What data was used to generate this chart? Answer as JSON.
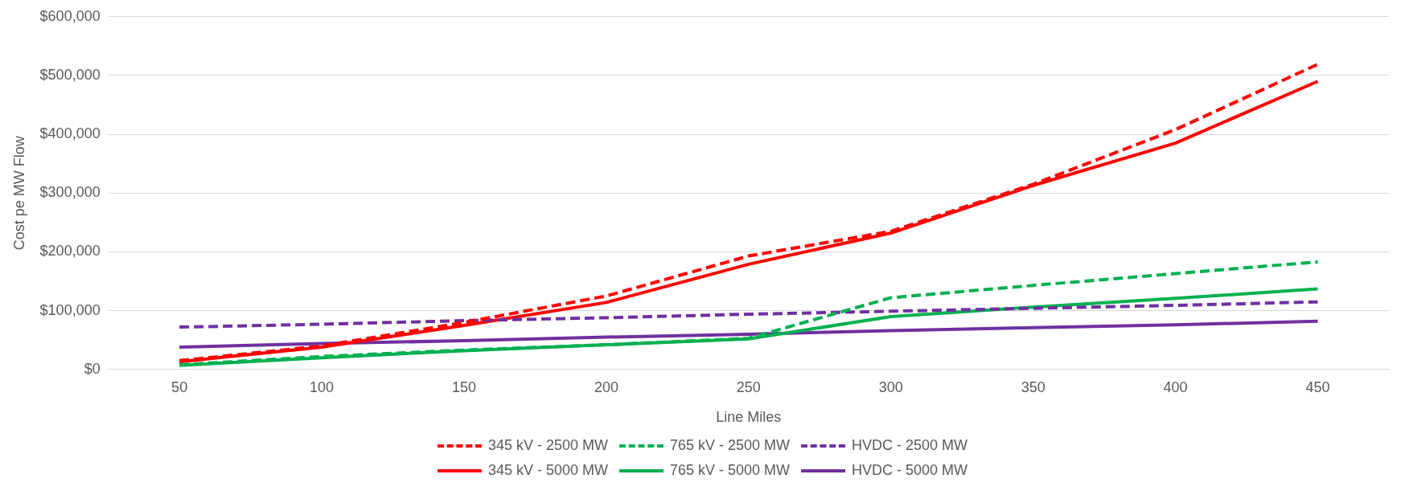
{
  "chart_data": {
    "type": "line",
    "xlabel": "Line Miles",
    "ylabel": "Cost pe MW Flow",
    "categories": [
      "50",
      "100",
      "150",
      "200",
      "250",
      "300",
      "350",
      "400",
      "450"
    ],
    "ylim": [
      0,
      600000
    ],
    "yticks": [
      {
        "value": 0,
        "label": "$0"
      },
      {
        "value": 100000,
        "label": "$100,000"
      },
      {
        "value": 200000,
        "label": "$200,000"
      },
      {
        "value": 300000,
        "label": "$300,000"
      },
      {
        "value": 400000,
        "label": "$400,000"
      },
      {
        "value": 500000,
        "label": "$500,000"
      },
      {
        "value": 600000,
        "label": "$600,000"
      }
    ],
    "grid": "y",
    "legend": "bottom",
    "marker": "none",
    "series": [
      {
        "name": "345 kV - 2500 MW",
        "color": "#ff0000",
        "line_style": "dashed",
        "values": [
          15000,
          40000,
          80000,
          125000,
          193000,
          235000,
          315000,
          408000,
          519000
        ]
      },
      {
        "name": "765 kV - 2500 MW",
        "color": "#00b050",
        "line_style": "dashed",
        "values": [
          8000,
          22000,
          33000,
          42000,
          53000,
          122000,
          143000,
          163000,
          183000
        ]
      },
      {
        "name": "HVDC - 2500 MW",
        "color": "#7030a0",
        "line_style": "dashed",
        "values": [
          72000,
          77000,
          83000,
          88000,
          94000,
          99000,
          104000,
          109000,
          115000
        ]
      },
      {
        "name": "345 kV - 5000 MW",
        "color": "#ff0000",
        "line_style": "solid",
        "values": [
          13000,
          38000,
          75000,
          114000,
          179000,
          232000,
          313000,
          385000,
          490000
        ]
      },
      {
        "name": "765 kV - 5000 MW",
        "color": "#00b050",
        "line_style": "solid",
        "values": [
          7000,
          20000,
          32000,
          42000,
          52000,
          90000,
          106000,
          121000,
          137000
        ]
      },
      {
        "name": "HVDC - 5000 MW",
        "color": "#7030a0",
        "line_style": "solid",
        "values": [
          38000,
          44000,
          49000,
          55000,
          60000,
          66000,
          71000,
          76000,
          82000
        ]
      }
    ]
  }
}
